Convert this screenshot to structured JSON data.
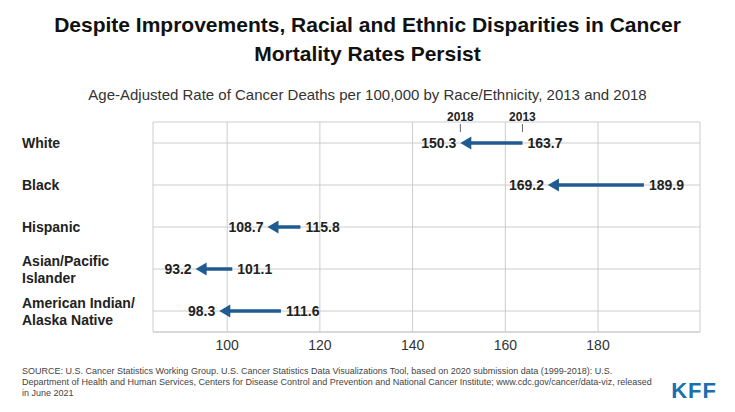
{
  "chart_data": {
    "type": "arrow",
    "orientation": "horizontal",
    "title": "Despite Improvements, Racial and Ethnic Disparities in Cancer Mortality Rates Persist",
    "subtitle": "Age-Adjusted Rate of Cancer Deaths per 100,000 by Race/Ethnicity, 2013 and 2018",
    "categories": [
      "White",
      "Black",
      "Hispanic",
      "Asian/Pacific Islander",
      "American Indian/Alaska Native"
    ],
    "series": [
      {
        "name": "2013",
        "color": "#1f5a91",
        "values": [
          163.7,
          189.9,
          115.8,
          101.1,
          111.6
        ]
      },
      {
        "name": "2018",
        "color": "#1f5a91",
        "values": [
          150.3,
          169.2,
          108.7,
          93.2,
          98.3
        ]
      }
    ],
    "xlim": [
      84,
      202
    ],
    "xticks": [
      100,
      120,
      140,
      160,
      180
    ],
    "grid": true,
    "data_labels": true,
    "source": "SOURCE: U.S. Cancer Statistics Working Group. U.S. Cancer Statistics Data Visualizations Tool, based on 2020 submission data (1999-2018): U.S. Department of Health and Human Services, Centers for Disease Control and Prevention and National Cancer Institute; www.cdc.gov/cancer/data-viz, released in June 2021",
    "logo": "KFF"
  }
}
